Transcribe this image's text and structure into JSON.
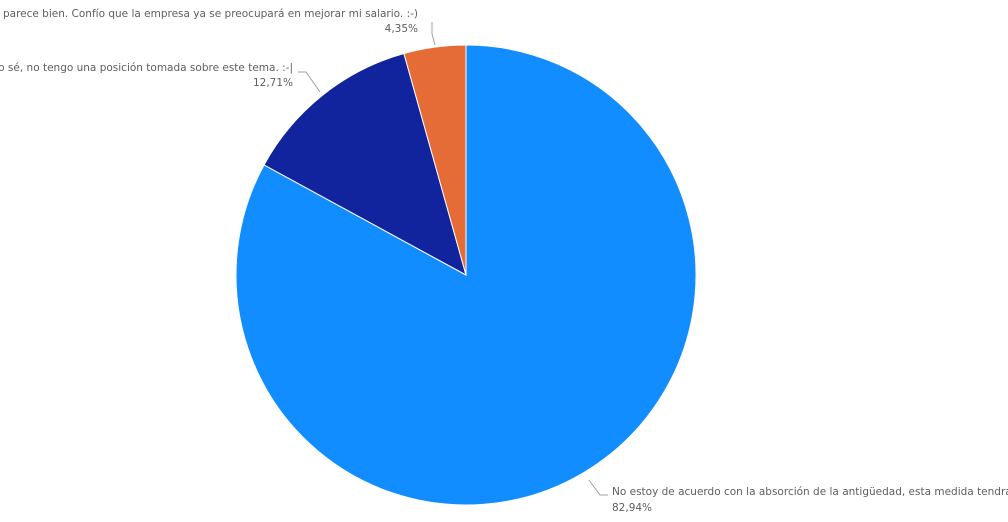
{
  "chart_data": {
    "type": "pie",
    "categories": [
      "No estoy de acuerdo con la absorción de la antigüedad, esta medida tendrá consecue...",
      "No lo sé, no tengo una posición tomada sobre este tema. :-|",
      "Me parece bien. Confío que la empresa ya se preocupará en mejorar mi salario. :-)"
    ],
    "values": [
      82.94,
      12.71,
      4.35
    ],
    "value_labels": [
      "82,94%",
      "12,71%",
      "4,35%"
    ],
    "colors": [
      "#118DFF",
      "#12239E",
      "#E66C37"
    ]
  }
}
